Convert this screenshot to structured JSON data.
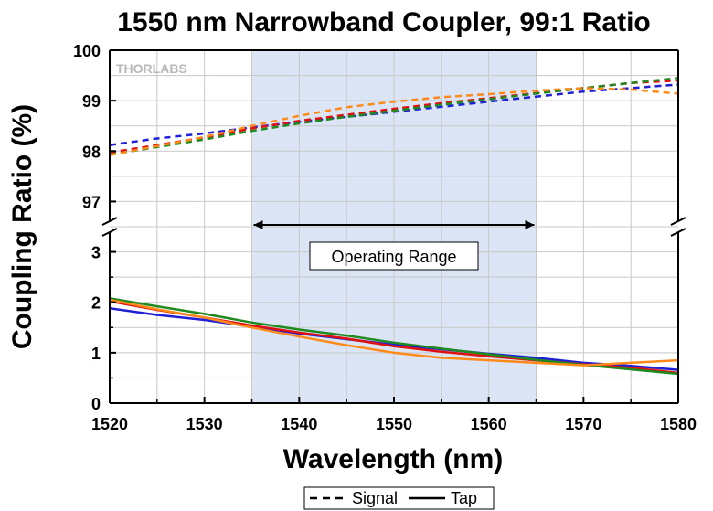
{
  "chart_data": {
    "type": "line",
    "title": "1550 nm Narrowband Coupler, 99:1 Ratio",
    "xlabel": "Wavelength (nm)",
    "ylabel": "Coupling Ratio (%)",
    "logo_text": "THORLABS",
    "xlim": [
      1520,
      1580
    ],
    "x_ticks": [
      "1520",
      "1530",
      "1540",
      "1550",
      "1560",
      "1570",
      "1580"
    ],
    "y_axis_broken": true,
    "y_lower_range": [
      0,
      3.5
    ],
    "y_upper_range": [
      96.5,
      100
    ],
    "y_ticks_lower": [
      "0",
      "1",
      "2",
      "3"
    ],
    "y_ticks_upper": [
      "97",
      "98",
      "99",
      "100"
    ],
    "grid": true,
    "operating_range": {
      "x": [
        1535,
        1565
      ],
      "label": "Operating Range",
      "shaded": true,
      "color": "#dbe5f5"
    },
    "legend": [
      {
        "label": "Signal",
        "line_style": "dashed"
      },
      {
        "label": "Tap",
        "line_style": "solid"
      }
    ],
    "legend_placement": "bottom-center",
    "series_colors": [
      "#1f1fd6",
      "#e01010",
      "#208a20",
      "#ff8a1a"
    ],
    "series": [
      {
        "group": "Signal",
        "color": "#1f1fd6",
        "style": "dashed",
        "x": [
          1520,
          1525,
          1530,
          1535,
          1540,
          1545,
          1550,
          1555,
          1560,
          1565,
          1570,
          1575,
          1580
        ],
        "y": [
          98.12,
          98.25,
          98.35,
          98.47,
          98.58,
          98.68,
          98.78,
          98.88,
          98.98,
          99.08,
          99.18,
          99.25,
          99.32
        ]
      },
      {
        "group": "Signal",
        "color": "#e01010",
        "style": "dashed",
        "x": [
          1520,
          1525,
          1530,
          1535,
          1540,
          1545,
          1550,
          1555,
          1560,
          1565,
          1570,
          1575,
          1580
        ],
        "y": [
          97.97,
          98.12,
          98.27,
          98.45,
          98.6,
          98.72,
          98.84,
          98.95,
          99.05,
          99.15,
          99.25,
          99.35,
          99.4
        ]
      },
      {
        "group": "Signal",
        "color": "#208a20",
        "style": "dashed",
        "x": [
          1520,
          1525,
          1530,
          1535,
          1540,
          1545,
          1550,
          1555,
          1560,
          1565,
          1570,
          1575,
          1580
        ],
        "y": [
          97.93,
          98.08,
          98.23,
          98.4,
          98.55,
          98.68,
          98.8,
          98.92,
          99.03,
          99.14,
          99.25,
          99.35,
          99.45
        ]
      },
      {
        "group": "Signal",
        "color": "#ff8a1a",
        "style": "dashed",
        "x": [
          1520,
          1525,
          1530,
          1535,
          1540,
          1545,
          1550,
          1555,
          1560,
          1565,
          1570,
          1575,
          1580
        ],
        "y": [
          97.92,
          98.1,
          98.28,
          98.5,
          98.7,
          98.87,
          98.98,
          99.07,
          99.13,
          99.2,
          99.25,
          99.22,
          99.14
        ]
      },
      {
        "group": "Tap",
        "color": "#1f1fd6",
        "style": "solid",
        "x": [
          1520,
          1525,
          1530,
          1535,
          1540,
          1545,
          1550,
          1555,
          1560,
          1565,
          1570,
          1575,
          1580
        ],
        "y": [
          1.88,
          1.75,
          1.65,
          1.52,
          1.38,
          1.27,
          1.16,
          1.07,
          0.98,
          0.9,
          0.8,
          0.74,
          0.66
        ]
      },
      {
        "group": "Tap",
        "color": "#e01010",
        "style": "solid",
        "x": [
          1520,
          1525,
          1530,
          1535,
          1540,
          1545,
          1550,
          1555,
          1560,
          1565,
          1570,
          1575,
          1580
        ],
        "y": [
          2.02,
          1.85,
          1.7,
          1.54,
          1.4,
          1.28,
          1.13,
          1.02,
          0.93,
          0.85,
          0.77,
          0.7,
          0.6
        ]
      },
      {
        "group": "Tap",
        "color": "#208a20",
        "style": "solid",
        "x": [
          1520,
          1525,
          1530,
          1535,
          1540,
          1545,
          1550,
          1555,
          1560,
          1565,
          1570,
          1575,
          1580
        ],
        "y": [
          2.08,
          1.92,
          1.77,
          1.6,
          1.46,
          1.34,
          1.2,
          1.08,
          0.97,
          0.86,
          0.76,
          0.67,
          0.58
        ]
      },
      {
        "group": "Tap",
        "color": "#ff8a1a",
        "style": "solid",
        "x": [
          1520,
          1525,
          1530,
          1535,
          1540,
          1545,
          1550,
          1555,
          1560,
          1565,
          1570,
          1575,
          1580
        ],
        "y": [
          2.05,
          1.86,
          1.7,
          1.5,
          1.32,
          1.15,
          1.0,
          0.9,
          0.85,
          0.8,
          0.75,
          0.8,
          0.85
        ]
      }
    ]
  }
}
